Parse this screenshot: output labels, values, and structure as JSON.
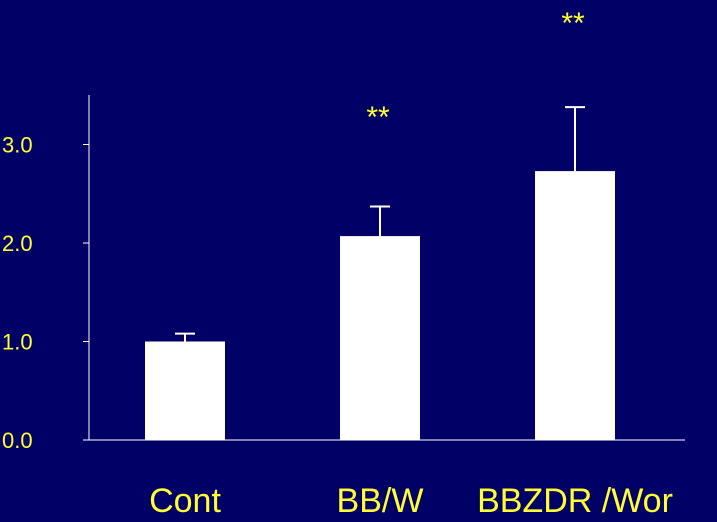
{
  "colors": {
    "background": "#000066",
    "bar_fill": "#ffffff",
    "axis": "#ffffff",
    "tick_label": "#ffff33",
    "category_label": "#ffff33",
    "significance": "#ffff33",
    "error_bar": "#ffffff"
  },
  "chart_data": {
    "type": "bar",
    "title": "",
    "xlabel": "",
    "ylabel": "",
    "ylim": [
      0,
      3.5
    ],
    "yticks": [
      0.0,
      1.0,
      2.0,
      3.0
    ],
    "ytick_labels": [
      "0.0",
      "1.0",
      "2.0",
      "3.0"
    ],
    "categories": [
      "Cont",
      "BB/W",
      "BBZDR /Wor"
    ],
    "values": [
      1.0,
      2.07,
      2.73
    ],
    "errors": [
      0.08,
      0.3,
      0.65
    ],
    "significance": [
      "",
      "**",
      "**"
    ],
    "grid": false,
    "legend": "none"
  }
}
